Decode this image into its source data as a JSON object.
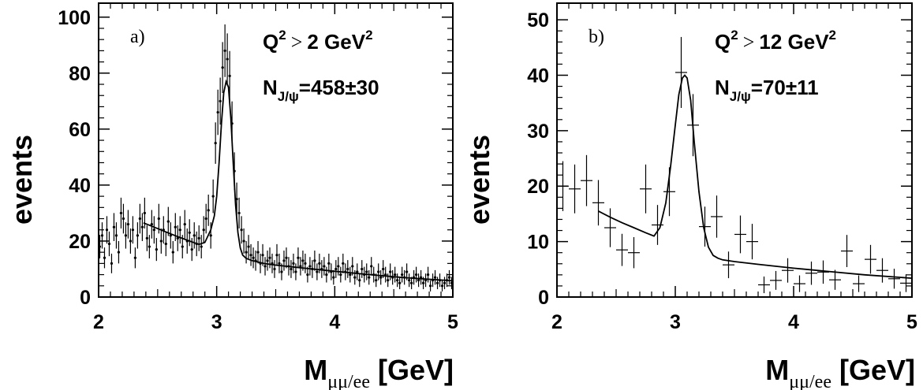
{
  "chart_data": [
    {
      "type": "scatter",
      "panel_label": "a)",
      "ylabel": "events",
      "xlabel_main": "M",
      "xlabel_sub": "μμ/ee",
      "xlabel_unit": "[GeV]",
      "cut_text": {
        "q": "Q",
        "exp": "2",
        "rel": ">",
        "val": "2 GeV",
        "unit_exp": "2"
      },
      "signal_text": {
        "n": "N",
        "sub": "J/ψ",
        "value": "=458±30"
      },
      "xlim": [
        2,
        5
      ],
      "ylim": [
        0,
        105
      ],
      "xticks": [
        "2",
        "3",
        "4",
        "5"
      ],
      "yticks": [
        "0",
        "20",
        "40",
        "60",
        "80",
        "100"
      ],
      "bin_width": 0.02,
      "points": {
        "x": [
          2.01,
          2.03,
          2.05,
          2.07,
          2.09,
          2.11,
          2.13,
          2.15,
          2.17,
          2.19,
          2.21,
          2.23,
          2.25,
          2.27,
          2.29,
          2.31,
          2.33,
          2.35,
          2.37,
          2.39,
          2.41,
          2.43,
          2.45,
          2.47,
          2.49,
          2.51,
          2.53,
          2.55,
          2.57,
          2.59,
          2.61,
          2.63,
          2.65,
          2.67,
          2.69,
          2.71,
          2.73,
          2.75,
          2.77,
          2.79,
          2.81,
          2.83,
          2.85,
          2.87,
          2.89,
          2.91,
          2.93,
          2.95,
          2.97,
          2.99,
          3.01,
          3.03,
          3.05,
          3.07,
          3.09,
          3.11,
          3.13,
          3.15,
          3.17,
          3.19,
          3.21,
          3.23,
          3.25,
          3.27,
          3.29,
          3.31,
          3.33,
          3.35,
          3.37,
          3.39,
          3.41,
          3.43,
          3.45,
          3.47,
          3.49,
          3.51,
          3.53,
          3.55,
          3.57,
          3.59,
          3.61,
          3.63,
          3.65,
          3.67,
          3.69,
          3.71,
          3.73,
          3.75,
          3.77,
          3.79,
          3.81,
          3.83,
          3.85,
          3.87,
          3.89,
          3.91,
          3.93,
          3.95,
          3.97,
          3.99,
          4.01,
          4.03,
          4.05,
          4.07,
          4.09,
          4.11,
          4.13,
          4.15,
          4.17,
          4.19,
          4.21,
          4.23,
          4.25,
          4.27,
          4.29,
          4.31,
          4.33,
          4.35,
          4.37,
          4.39,
          4.41,
          4.43,
          4.45,
          4.47,
          4.49,
          4.51,
          4.53,
          4.55,
          4.57,
          4.59,
          4.61,
          4.63,
          4.65,
          4.67,
          4.69,
          4.71,
          4.73,
          4.75,
          4.77,
          4.79,
          4.81,
          4.83,
          4.85,
          4.87,
          4.89,
          4.91,
          4.93,
          4.95,
          4.97,
          4.99
        ],
        "y": [
          18,
          22,
          14,
          24,
          19,
          12,
          25,
          22,
          16,
          30,
          28,
          22,
          26,
          20,
          24,
          14,
          22,
          28,
          25,
          30,
          21,
          18,
          26,
          24,
          17,
          28,
          20,
          24,
          19,
          27,
          22,
          16,
          25,
          21,
          24,
          18,
          26,
          20,
          23,
          17,
          22,
          19,
          21,
          18,
          24,
          28,
          31,
          22,
          36,
          55,
          66,
          70,
          82,
          88,
          85,
          79,
          62,
          45,
          35,
          30,
          24,
          20,
          16,
          18,
          15,
          14,
          13,
          16,
          12,
          15,
          11,
          13,
          14,
          12,
          10,
          15,
          12,
          9,
          13,
          14,
          11,
          10,
          12,
          9,
          14,
          11,
          13,
          12,
          8,
          11,
          10,
          13,
          9,
          12,
          10,
          11,
          8,
          12,
          9,
          7,
          10,
          11,
          8,
          12,
          9,
          10,
          8,
          11,
          7,
          9,
          6,
          10,
          8,
          9,
          7,
          11,
          8,
          6,
          9,
          7,
          10,
          8,
          6,
          9,
          7,
          8,
          6,
          5,
          8,
          7,
          9,
          6,
          5,
          7,
          8,
          6,
          7,
          5,
          6,
          8,
          4,
          6,
          7,
          5,
          6,
          4,
          5,
          6,
          7,
          5
        ],
        "err": [
          4.2,
          4.7,
          3.7,
          4.9,
          4.4,
          3.5,
          5,
          4.7,
          4,
          5.5,
          5.3,
          4.7,
          5.1,
          4.5,
          4.9,
          3.7,
          4.7,
          5.3,
          5,
          5.5,
          4.6,
          4.2,
          5.1,
          4.9,
          4.1,
          5.3,
          4.5,
          4.9,
          4.4,
          5.2,
          4.7,
          4,
          5,
          4.6,
          4.9,
          4.2,
          5.1,
          4.5,
          4.8,
          4.1,
          4.7,
          4.4,
          4.6,
          4.2,
          4.9,
          5.3,
          5.6,
          4.7,
          6,
          7.4,
          8.1,
          8.4,
          9.1,
          9.4,
          9.2,
          8.9,
          7.9,
          6.7,
          5.9,
          5.5,
          4.9,
          4.5,
          4,
          4.2,
          3.9,
          3.7,
          3.6,
          4,
          3.5,
          3.9,
          3.3,
          3.6,
          3.7,
          3.5,
          3.2,
          3.9,
          3.5,
          3,
          3.6,
          3.7,
          3.3,
          3.2,
          3.5,
          3,
          3.7,
          3.3,
          3.6,
          3.5,
          2.8,
          3.3,
          3.2,
          3.6,
          3,
          3.5,
          3.2,
          3.3,
          2.8,
          3.5,
          3,
          2.6,
          3.2,
          3.3,
          2.8,
          3.5,
          3,
          3.2,
          2.8,
          3.3,
          2.6,
          3,
          2.4,
          3.2,
          2.8,
          3,
          2.6,
          3.3,
          2.8,
          2.4,
          3,
          2.6,
          3.2,
          2.8,
          2.4,
          3,
          2.6,
          2.8,
          2.4,
          2.2,
          2.8,
          2.6,
          3,
          2.4,
          2.2,
          2.6,
          2.8,
          2.4,
          2.6,
          2.2,
          2.4,
          2.8,
          2,
          2.4,
          2.6,
          2.2,
          2.4,
          2,
          2.2,
          2.4,
          2.6,
          2.2
        ]
      },
      "fit": {
        "x": [
          2.38,
          2.45,
          2.55,
          2.65,
          2.75,
          2.85,
          2.9,
          2.95,
          2.98,
          3.0,
          3.02,
          3.04,
          3.06,
          3.08,
          3.1,
          3.12,
          3.14,
          3.16,
          3.18,
          3.2,
          3.22,
          3.25,
          3.3,
          3.4,
          3.5,
          3.7,
          4.0,
          4.3,
          4.6,
          5.0
        ],
        "y": [
          26.5,
          25.3,
          23.6,
          21.9,
          20.3,
          18.8,
          19.5,
          24,
          29,
          36,
          48,
          62,
          73,
          77,
          75,
          64,
          48,
          33,
          23,
          17.5,
          15,
          13.8,
          13,
          12,
          11.4,
          10.5,
          9.2,
          8,
          6.9,
          5.8
        ]
      }
    },
    {
      "type": "scatter",
      "panel_label": "b)",
      "ylabel": "events",
      "xlabel_main": "M",
      "xlabel_sub": "μμ/ee",
      "xlabel_unit": "[GeV]",
      "cut_text": {
        "q": "Q",
        "exp": "2",
        "rel": ">",
        "val": "12 GeV",
        "unit_exp": "2"
      },
      "signal_text": {
        "n": "N",
        "sub": "J/ψ",
        "value": "=70±11"
      },
      "xlim": [
        2,
        5
      ],
      "ylim": [
        0,
        53
      ],
      "xticks": [
        "2",
        "3",
        "4",
        "5"
      ],
      "yticks": [
        "0",
        "10",
        "20",
        "30",
        "40",
        "50"
      ],
      "bin_width": 0.1,
      "points": {
        "x": [
          2.05,
          2.15,
          2.25,
          2.35,
          2.45,
          2.55,
          2.65,
          2.75,
          2.85,
          2.95,
          3.05,
          3.15,
          3.25,
          3.35,
          3.45,
          3.55,
          3.65,
          3.75,
          3.85,
          3.95,
          4.05,
          4.15,
          4.25,
          4.35,
          4.45,
          4.55,
          4.65,
          4.75,
          4.85,
          4.95
        ],
        "y": [
          20,
          19.5,
          21,
          17,
          12.5,
          8.5,
          8,
          19.5,
          13,
          19,
          40.5,
          31,
          12.7,
          14.5,
          5.8,
          11.3,
          10,
          2.2,
          3,
          4.8,
          2.4,
          4.3,
          4.5,
          3.1,
          8.3,
          2.4,
          6.8,
          4.8,
          3.3,
          2.5
        ],
        "err": [
          4.5,
          4.4,
          4.6,
          4.1,
          3.5,
          2.9,
          2.8,
          4.4,
          3.6,
          4.4,
          6.4,
          5.6,
          3.6,
          3.8,
          2.4,
          3.4,
          3.2,
          1.5,
          1.7,
          2.2,
          1.5,
          2.1,
          2.1,
          1.8,
          2.9,
          1.5,
          2.6,
          2.2,
          1.8,
          1.6
        ]
      },
      "fit": {
        "x": [
          2.35,
          2.45,
          2.55,
          2.65,
          2.75,
          2.82,
          2.87,
          2.92,
          2.96,
          3.0,
          3.03,
          3.06,
          3.08,
          3.1,
          3.13,
          3.16,
          3.2,
          3.24,
          3.28,
          3.32,
          3.36,
          3.4,
          3.5,
          3.7,
          4.0,
          4.3,
          4.6,
          5.0
        ],
        "y": [
          15.5,
          14.4,
          13.4,
          12.5,
          11.6,
          11,
          12.5,
          17,
          23.5,
          31,
          36.5,
          39.5,
          40,
          39.5,
          35.5,
          28,
          19,
          12.5,
          9,
          7.5,
          7,
          6.7,
          6.4,
          5.9,
          5.2,
          4.6,
          4.0,
          3.4
        ]
      }
    }
  ]
}
